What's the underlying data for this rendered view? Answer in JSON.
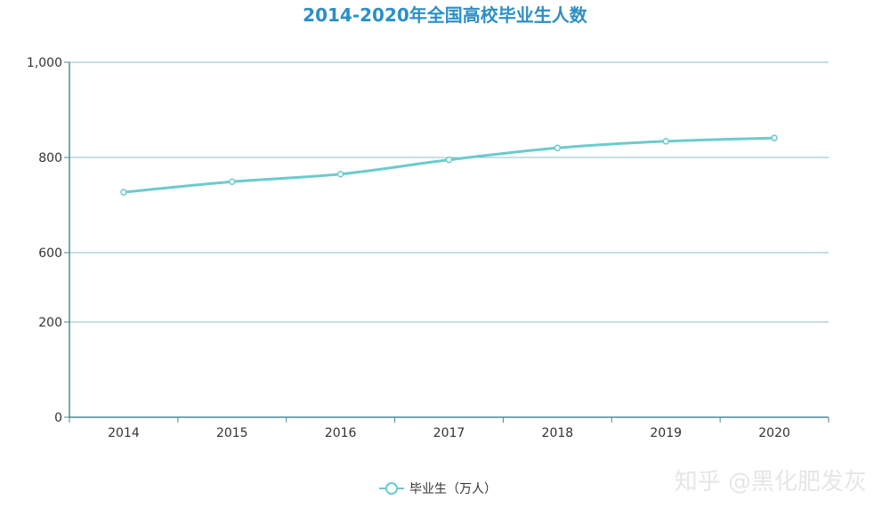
{
  "chart_data": {
    "type": "line",
    "title": "2014-2020年全国高校毕业生人数",
    "categories": [
      "2014",
      "2015",
      "2016",
      "2017",
      "2018",
      "2019",
      "2020"
    ],
    "series": [
      {
        "name": "毕业生（万人）",
        "values": [
          727,
          749,
          765,
          795,
          820,
          834,
          841
        ]
      }
    ],
    "y_ticks": [
      {
        "label": "0",
        "value": 0
      },
      {
        "label": "200",
        "value": 200
      },
      {
        "label": "600",
        "value": 600
      },
      {
        "label": "800",
        "value": 800
      },
      {
        "label": "1,000",
        "value": 1000
      }
    ],
    "grid": true,
    "legend_position": "bottom-center",
    "colors": {
      "series": "#6ccbcd",
      "title": "#2c8fc4",
      "axis": "#4a8a98",
      "grid": "#8fbcc4"
    }
  },
  "watermark": "知乎 @黑化肥发灰"
}
